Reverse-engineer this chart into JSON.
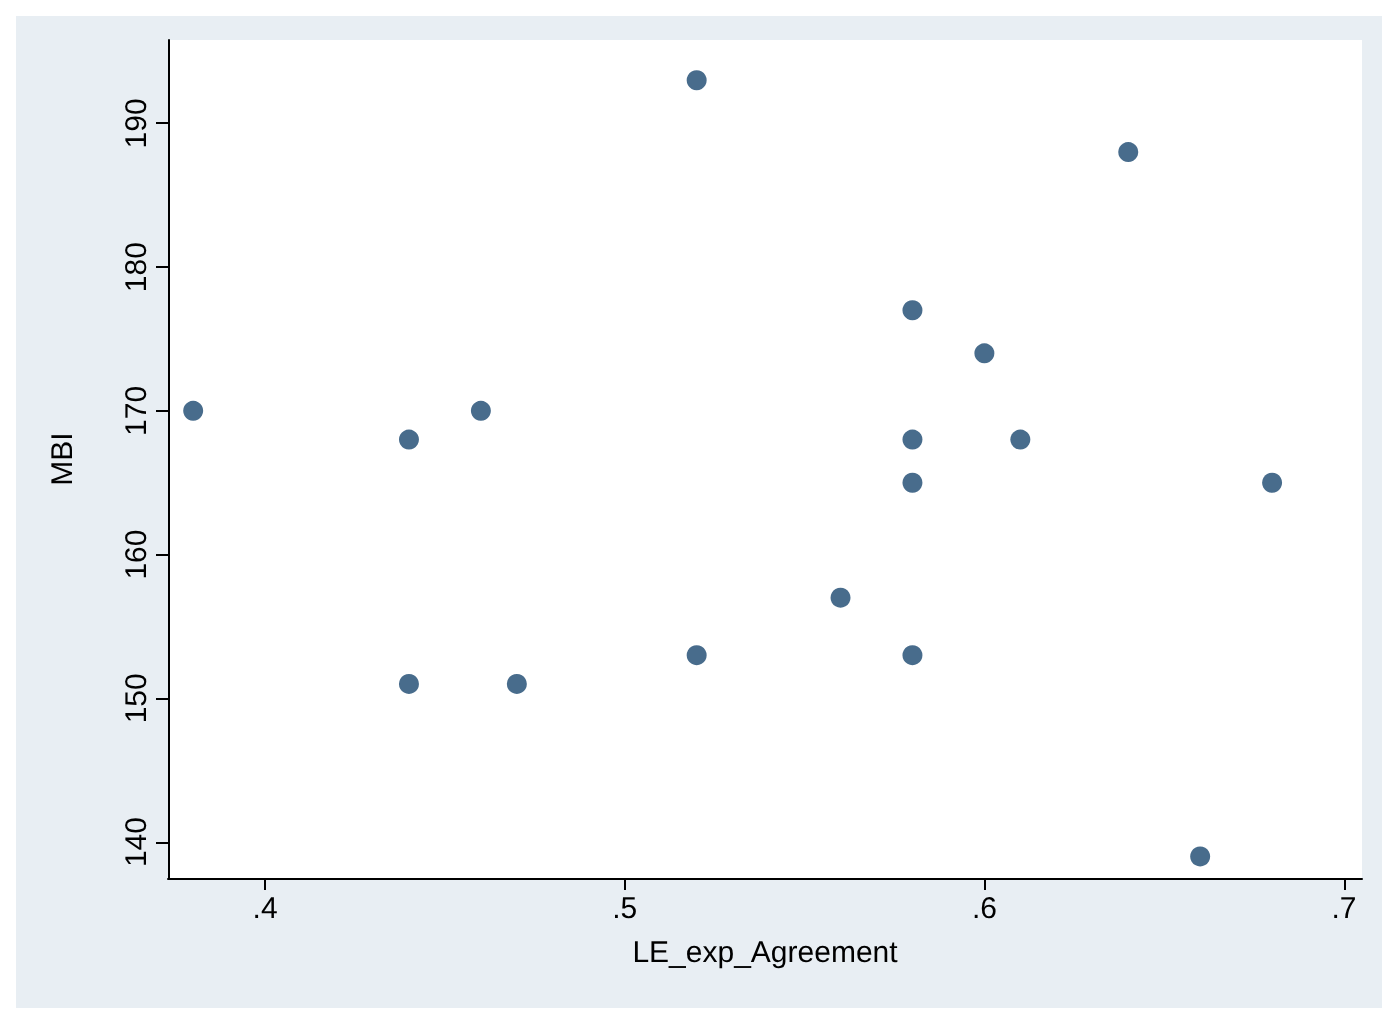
{
  "chart_data": {
    "type": "scatter",
    "xlabel": "LE_exp_Agreement",
    "ylabel": "MBI",
    "x": [
      0.38,
      0.44,
      0.44,
      0.46,
      0.47,
      0.52,
      0.52,
      0.56,
      0.58,
      0.58,
      0.58,
      0.58,
      0.6,
      0.61,
      0.64,
      0.68,
      0.66
    ],
    "series": [
      {
        "color": "#1a476f",
        "values": [
          170,
          168,
          151,
          170,
          151,
          193,
          153,
          157,
          177,
          168,
          165,
          153,
          174,
          168,
          188,
          165,
          139
        ]
      }
    ],
    "xlim": [
      0.373,
      0.705
    ],
    "ylim": [
      137.5,
      195.8
    ],
    "xticks": [
      {
        "value": 0.4,
        "label": ".4"
      },
      {
        "value": 0.5,
        "label": ".5"
      },
      {
        "value": 0.6,
        "label": ".6"
      },
      {
        "value": 0.7,
        "label": ".7"
      }
    ],
    "yticks": [
      140,
      150,
      160,
      170,
      180,
      190
    ],
    "grid": false,
    "marker": "circle"
  }
}
